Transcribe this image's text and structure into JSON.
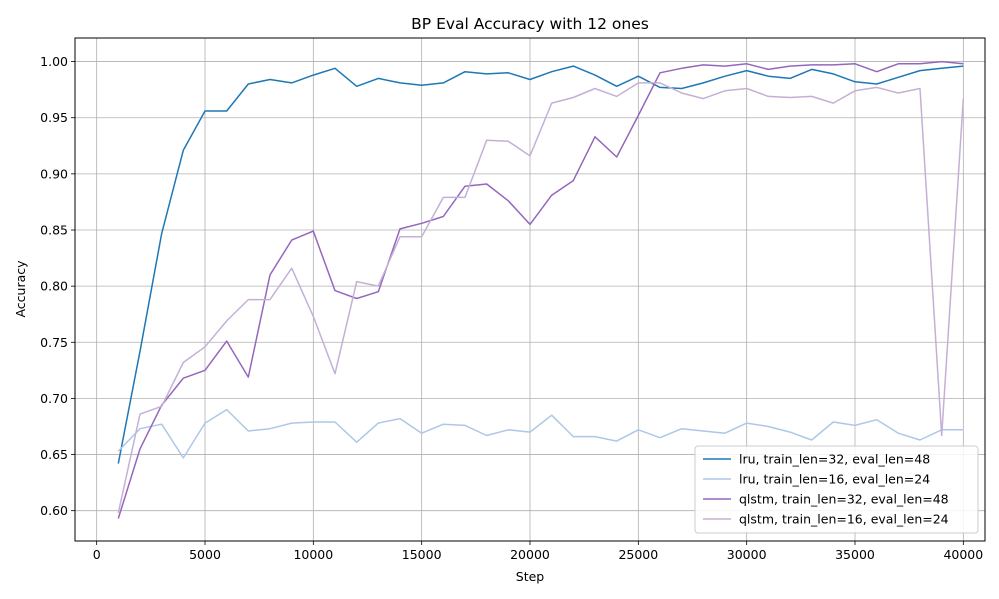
{
  "chart_data": {
    "type": "line",
    "title": "BP Eval Accuracy with 12 ones",
    "xlabel": "Step",
    "ylabel": "Accuracy",
    "xlim": [
      -1000,
      41000
    ],
    "ylim": [
      0.573,
      1.021
    ],
    "xticks": [
      0,
      5000,
      10000,
      15000,
      20000,
      25000,
      30000,
      35000,
      40000
    ],
    "xtick_labels": [
      "0",
      "5000",
      "10000",
      "15000",
      "20000",
      "25000",
      "30000",
      "35000",
      "40000"
    ],
    "yticks": [
      0.6,
      0.65,
      0.7,
      0.75,
      0.8,
      0.85,
      0.9,
      0.95,
      1.0
    ],
    "ytick_labels": [
      "0.60",
      "0.65",
      "0.70",
      "0.75",
      "0.80",
      "0.85",
      "0.90",
      "0.95",
      "1.00"
    ],
    "grid": true,
    "legend_position": "bottom-right",
    "x": [
      1000,
      2000,
      3000,
      4000,
      5000,
      6000,
      7000,
      8000,
      9000,
      10000,
      11000,
      12000,
      13000,
      14000,
      15000,
      16000,
      17000,
      18000,
      19000,
      20000,
      21000,
      22000,
      23000,
      24000,
      25000,
      26000,
      27000,
      28000,
      29000,
      30000,
      31000,
      32000,
      33000,
      34000,
      35000,
      36000,
      37000,
      38000,
      39000,
      40000
    ],
    "series": [
      {
        "name": "lru, train_len=32, eval_len=48",
        "color": "#1f77b4",
        "values": [
          0.642,
          0.742,
          0.847,
          0.921,
          0.956,
          0.956,
          0.98,
          0.984,
          0.981,
          0.988,
          0.994,
          0.978,
          0.985,
          0.981,
          0.979,
          0.981,
          0.991,
          0.989,
          0.99,
          0.984,
          0.991,
          0.996,
          0.988,
          0.978,
          0.987,
          0.977,
          0.976,
          0.981,
          0.987,
          0.992,
          0.987,
          0.985,
          0.993,
          0.989,
          0.982,
          0.98,
          0.986,
          0.992,
          0.994,
          0.996
        ]
      },
      {
        "name": "lru, train_len=16, eval_len=24",
        "color": "#aec7e8",
        "values": [
          0.653,
          0.673,
          0.677,
          0.647,
          0.678,
          0.69,
          0.671,
          0.673,
          0.678,
          0.679,
          0.679,
          0.661,
          0.678,
          0.682,
          0.669,
          0.677,
          0.676,
          0.667,
          0.672,
          0.67,
          0.685,
          0.666,
          0.666,
          0.662,
          0.672,
          0.665,
          0.673,
          0.671,
          0.669,
          0.678,
          0.675,
          0.67,
          0.663,
          0.679,
          0.676,
          0.681,
          0.669,
          0.663,
          0.672,
          0.672
        ]
      },
      {
        "name": "qlstm, train_len=32, eval_len=48",
        "color": "#9467bd",
        "values": [
          0.593,
          0.655,
          0.694,
          0.718,
          0.725,
          0.751,
          0.719,
          0.81,
          0.841,
          0.849,
          0.796,
          0.789,
          0.795,
          0.851,
          0.856,
          0.862,
          0.889,
          0.891,
          0.876,
          0.855,
          0.881,
          0.894,
          0.933,
          0.915,
          0.952,
          0.99,
          0.994,
          0.997,
          0.996,
          0.998,
          0.993,
          0.996,
          0.997,
          0.997,
          0.998,
          0.991,
          0.998,
          0.998,
          1.0,
          0.998
        ]
      },
      {
        "name": "qlstm, train_len=16, eval_len=24",
        "color": "#c5b0d5",
        "values": [
          0.598,
          0.686,
          0.693,
          0.732,
          0.746,
          0.769,
          0.788,
          0.788,
          0.816,
          0.773,
          0.722,
          0.804,
          0.8,
          0.844,
          0.844,
          0.879,
          0.879,
          0.93,
          0.929,
          0.916,
          0.963,
          0.968,
          0.976,
          0.969,
          0.981,
          0.981,
          0.972,
          0.967,
          0.974,
          0.976,
          0.969,
          0.968,
          0.969,
          0.963,
          0.974,
          0.977,
          0.972,
          0.976,
          0.667,
          0.967
        ]
      }
    ]
  }
}
